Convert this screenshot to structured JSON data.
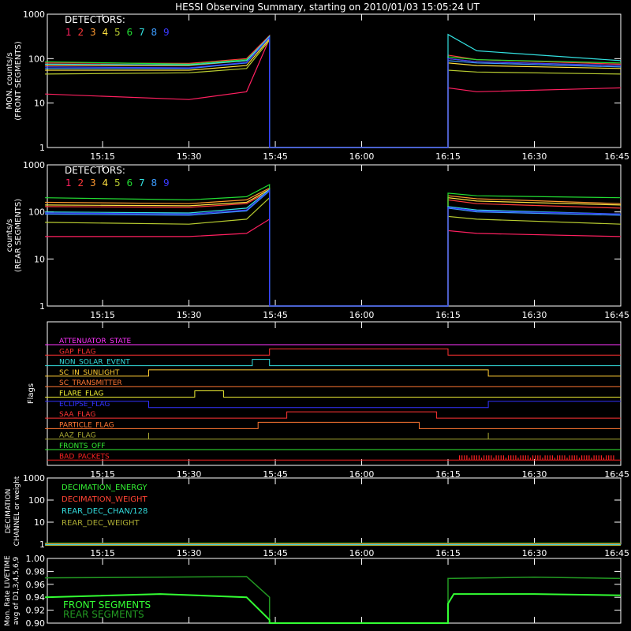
{
  "page_title": "HESSI Observing Summary, starting on 2010/01/03 15:05:24 UT",
  "colors": {
    "background": "#000000",
    "frame": "#ffffff",
    "det": [
      "#ff2060",
      "#ff3b3b",
      "#ff9a30",
      "#ffe040",
      "#b8cc30",
      "#22dd33",
      "#33e0e0",
      "#3c9cff",
      "#3a3aff"
    ],
    "flag_colors": [
      "#ff33ff",
      "#ff3333",
      "#33dddd",
      "#ffcc33",
      "#ff7733",
      "#eeee33",
      "#3333ff",
      "#ff3333",
      "#ff7733",
      "#aaaa33",
      "#33ee33",
      "#ff2222"
    ],
    "decim": [
      "#33ee33",
      "#ff4433",
      "#33dddd",
      "#aaaa33"
    ],
    "live_front": "#33ff33",
    "live_rear": "#229922"
  },
  "time_axis": {
    "start": "15:05:24",
    "end": "16:45:00",
    "tick_labels": [
      "15:15",
      "15:30",
      "15:45",
      "16:00",
      "16:15",
      "16:30",
      "16:45"
    ]
  },
  "chart_data": [
    {
      "type": "line",
      "panel": "front",
      "ylabel": "MON. counts/s",
      "ylabel2": "(FRONT SEGMENTS)",
      "y_scale": "log",
      "ylim": [
        1,
        1000
      ],
      "y_ticks": [
        "1",
        "10",
        "100",
        "1000"
      ],
      "legend_title": "DETECTORS:",
      "series": [
        {
          "name": "1",
          "x": [
            "15:05",
            "15:30",
            "15:40",
            "15:44",
            "15:44",
            "16:15",
            "16:15",
            "16:20",
            "16:45"
          ],
          "values": [
            16,
            12,
            18,
            280,
            1,
            1,
            22,
            18,
            22
          ]
        },
        {
          "name": "2",
          "x": [
            "15:05",
            "15:30",
            "15:40",
            "15:44",
            "15:44",
            "16:15",
            "16:15",
            "16:20",
            "16:45"
          ],
          "values": [
            80,
            78,
            100,
            330,
            1,
            1,
            120,
            95,
            75
          ]
        },
        {
          "name": "3",
          "x": [
            "15:05",
            "15:30",
            "15:40",
            "15:44",
            "15:44",
            "16:15",
            "16:15",
            "16:20",
            "16:45"
          ],
          "values": [
            70,
            70,
            90,
            300,
            1,
            1,
            100,
            85,
            70
          ]
        },
        {
          "name": "4",
          "x": [
            "15:05",
            "15:30",
            "15:40",
            "15:44",
            "15:44",
            "16:15",
            "16:15",
            "16:20",
            "16:45"
          ],
          "values": [
            55,
            55,
            70,
            280,
            1,
            1,
            80,
            70,
            60
          ]
        },
        {
          "name": "5",
          "x": [
            "15:05",
            "15:30",
            "15:40",
            "15:44",
            "15:44",
            "16:15",
            "16:15",
            "16:20",
            "16:45"
          ],
          "values": [
            45,
            48,
            60,
            260,
            1,
            1,
            55,
            50,
            45
          ]
        },
        {
          "name": "6",
          "x": [
            "15:05",
            "15:30",
            "15:40",
            "15:44",
            "15:44",
            "16:15",
            "16:15",
            "16:20",
            "16:45"
          ],
          "values": [
            85,
            75,
            95,
            300,
            1,
            1,
            110,
            95,
            80
          ]
        },
        {
          "name": "7",
          "x": [
            "15:05",
            "15:30",
            "15:40",
            "15:44",
            "15:44",
            "16:15",
            "16:15",
            "16:20",
            "16:45"
          ],
          "values": [
            75,
            72,
            90,
            320,
            1,
            1,
            350,
            150,
            90
          ]
        },
        {
          "name": "8",
          "x": [
            "15:05",
            "15:30",
            "15:40",
            "15:44",
            "15:44",
            "16:15",
            "16:15",
            "16:20",
            "16:45"
          ],
          "values": [
            60,
            60,
            80,
            300,
            1,
            1,
            90,
            80,
            65
          ]
        },
        {
          "name": "9",
          "x": [
            "15:05",
            "15:30",
            "15:40",
            "15:44",
            "15:44",
            "16:15",
            "16:15",
            "16:20",
            "16:45"
          ],
          "values": [
            65,
            62,
            82,
            300,
            1,
            1,
            100,
            85,
            70
          ]
        }
      ]
    },
    {
      "type": "line",
      "panel": "rear",
      "ylabel": "counts/s",
      "ylabel2": "(REAR SEGMENTS)",
      "y_scale": "log",
      "ylim": [
        1,
        1000
      ],
      "y_ticks": [
        "1",
        "10",
        "100",
        "1000"
      ],
      "legend_title": "DETECTORS:",
      "series": [
        {
          "name": "1",
          "x": [
            "15:05",
            "15:30",
            "15:40",
            "15:44",
            "15:44",
            "16:15",
            "16:15",
            "16:20",
            "16:45"
          ],
          "values": [
            30,
            30,
            35,
            70,
            1,
            1,
            40,
            35,
            30
          ]
        },
        {
          "name": "2",
          "x": [
            "15:05",
            "15:30",
            "15:40",
            "15:44",
            "15:44",
            "16:15",
            "16:15",
            "16:20",
            "16:45"
          ],
          "values": [
            130,
            125,
            150,
            280,
            1,
            1,
            180,
            150,
            120
          ]
        },
        {
          "name": "3",
          "x": [
            "15:05",
            "15:30",
            "15:40",
            "15:44",
            "15:44",
            "16:15",
            "16:15",
            "16:20",
            "16:45"
          ],
          "values": [
            160,
            150,
            180,
            320,
            1,
            1,
            220,
            190,
            150
          ]
        },
        {
          "name": "4",
          "x": [
            "15:05",
            "15:30",
            "15:40",
            "15:44",
            "15:44",
            "16:15",
            "16:15",
            "16:20",
            "16:45"
          ],
          "values": [
            140,
            135,
            160,
            300,
            1,
            1,
            200,
            170,
            140
          ]
        },
        {
          "name": "5",
          "x": [
            "15:05",
            "15:30",
            "15:40",
            "15:44",
            "15:44",
            "16:15",
            "16:15",
            "16:20",
            "16:45"
          ],
          "values": [
            60,
            55,
            70,
            200,
            1,
            1,
            80,
            70,
            55
          ]
        },
        {
          "name": "6",
          "x": [
            "15:05",
            "15:30",
            "15:40",
            "15:44",
            "15:44",
            "16:15",
            "16:15",
            "16:20",
            "16:45"
          ],
          "values": [
            200,
            180,
            210,
            380,
            1,
            1,
            250,
            220,
            200
          ]
        },
        {
          "name": "7",
          "x": [
            "15:05",
            "15:30",
            "15:40",
            "15:44",
            "15:44",
            "16:15",
            "16:15",
            "16:20",
            "16:45"
          ],
          "values": [
            100,
            95,
            120,
            300,
            1,
            1,
            130,
            110,
            90
          ]
        },
        {
          "name": "8",
          "x": [
            "15:05",
            "15:30",
            "15:40",
            "15:44",
            "15:44",
            "16:15",
            "16:15",
            "16:20",
            "16:45"
          ],
          "values": [
            90,
            85,
            105,
            280,
            1,
            1,
            120,
            100,
            85
          ]
        },
        {
          "name": "9",
          "x": [
            "15:05",
            "15:30",
            "15:40",
            "15:44",
            "15:44",
            "16:15",
            "16:15",
            "16:20",
            "16:45"
          ],
          "values": [
            95,
            90,
            110,
            290,
            1,
            1,
            125,
            105,
            90
          ]
        }
      ]
    },
    {
      "type": "line",
      "panel": "flags",
      "ylabel": "Flags",
      "flags": [
        {
          "name": "ATTENUATOR_STATE",
          "x": [
            "15:05",
            "16:45"
          ],
          "values": [
            0,
            0
          ]
        },
        {
          "name": "GAP_FLAG",
          "x": [
            "15:05",
            "15:44",
            "15:44",
            "16:15",
            "16:15",
            "16:45"
          ],
          "values": [
            0,
            0,
            1,
            1,
            0,
            0
          ]
        },
        {
          "name": "NON_SOLAR_EVENT",
          "x": [
            "15:05",
            "15:41",
            "15:41",
            "15:44",
            "15:44",
            "16:45"
          ],
          "values": [
            0,
            0,
            1,
            1,
            0,
            0
          ]
        },
        {
          "name": "SC_IN_SUNLIGHT",
          "x": [
            "15:05",
            "15:23",
            "15:23",
            "16:22",
            "16:22",
            "16:45"
          ],
          "values": [
            0,
            0,
            1,
            1,
            0,
            0
          ]
        },
        {
          "name": "SC_TRANSMITTER",
          "x": [
            "15:05",
            "16:45"
          ],
          "values": [
            0,
            0
          ]
        },
        {
          "name": "FLARE_FLAG",
          "x": [
            "15:05",
            "15:31",
            "15:31",
            "15:36",
            "15:36",
            "16:45"
          ],
          "values": [
            0,
            0,
            1,
            1,
            0,
            0
          ]
        },
        {
          "name": "ECLIPSE_FLAG",
          "x": [
            "15:05",
            "15:23",
            "15:23",
            "16:22",
            "16:22",
            "16:45"
          ],
          "values": [
            1,
            1,
            0,
            0,
            1,
            1
          ]
        },
        {
          "name": "SAA_FLAG",
          "x": [
            "15:05",
            "15:47",
            "15:47",
            "16:13",
            "16:13",
            "16:45"
          ],
          "values": [
            0,
            0,
            1,
            1,
            0,
            0
          ]
        },
        {
          "name": "PARTICLE_FLAG",
          "x": [
            "15:05",
            "15:42",
            "15:42",
            "16:10",
            "16:10",
            "16:45"
          ],
          "values": [
            0,
            0,
            1,
            1,
            0,
            0
          ]
        },
        {
          "name": "AAZ_FLAG",
          "x": [
            "15:05",
            "15:23",
            "15:23",
            "15:23",
            "16:22",
            "16:22",
            "16:22",
            "16:45"
          ],
          "values": [
            0,
            0,
            1,
            0,
            0,
            1,
            0,
            0
          ]
        },
        {
          "name": "FRONTS_OFF",
          "x": [
            "15:05",
            "16:45"
          ],
          "values": [
            0,
            0
          ]
        },
        {
          "name": "BAD_PACKETS",
          "x": [
            "16:17",
            "16:44"
          ],
          "values": [
            1,
            1
          ]
        }
      ]
    },
    {
      "type": "line",
      "panel": "decimation",
      "ylabel": "DECIMATION",
      "ylabel2": "CHANNEL or weight",
      "y_scale": "log",
      "ylim": [
        1,
        1000
      ],
      "y_ticks": [
        "1",
        "10",
        "100",
        "1000"
      ],
      "series": [
        {
          "name": "DECIMATION_ENERGY",
          "x": [
            "15:05",
            "16:45"
          ],
          "values": [
            1,
            1
          ]
        },
        {
          "name": "DECIMATION_WEIGHT",
          "x": [
            "15:05",
            "16:45"
          ],
          "values": [
            1,
            1
          ]
        },
        {
          "name": "REAR_DEC_CHAN/128",
          "x": [
            "15:05",
            "16:45"
          ],
          "values": [
            1,
            1
          ]
        },
        {
          "name": "REAR_DEC_WEIGHT",
          "x": [
            "15:05",
            "16:45"
          ],
          "values": [
            1,
            1
          ]
        }
      ]
    },
    {
      "type": "line",
      "panel": "livetime",
      "ylabel": "Mon. Rate LIVETIME",
      "ylabel2": "avg of D1,3,4,5,6,9",
      "ylim": [
        0.9,
        1.0
      ],
      "y_ticks": [
        "0.90",
        "0.92",
        "0.94",
        "0.96",
        "0.98",
        "1.00"
      ],
      "series": [
        {
          "name": "FRONT SEGMENTS",
          "x": [
            "15:05",
            "15:25",
            "15:40",
            "15:44",
            "15:44",
            "16:15",
            "16:15",
            "16:16",
            "16:30",
            "16:45"
          ],
          "values": [
            0.94,
            0.945,
            0.94,
            0.905,
            0.9,
            0.9,
            0.93,
            0.945,
            0.945,
            0.943
          ]
        },
        {
          "name": "REAR SEGMENTS",
          "x": [
            "15:05",
            "15:25",
            "15:40",
            "15:44",
            "15:44",
            "16:15",
            "16:15",
            "16:30",
            "16:45"
          ],
          "values": [
            0.97,
            0.971,
            0.972,
            0.94,
            0.9,
            0.9,
            0.969,
            0.971,
            0.969
          ]
        }
      ]
    }
  ]
}
